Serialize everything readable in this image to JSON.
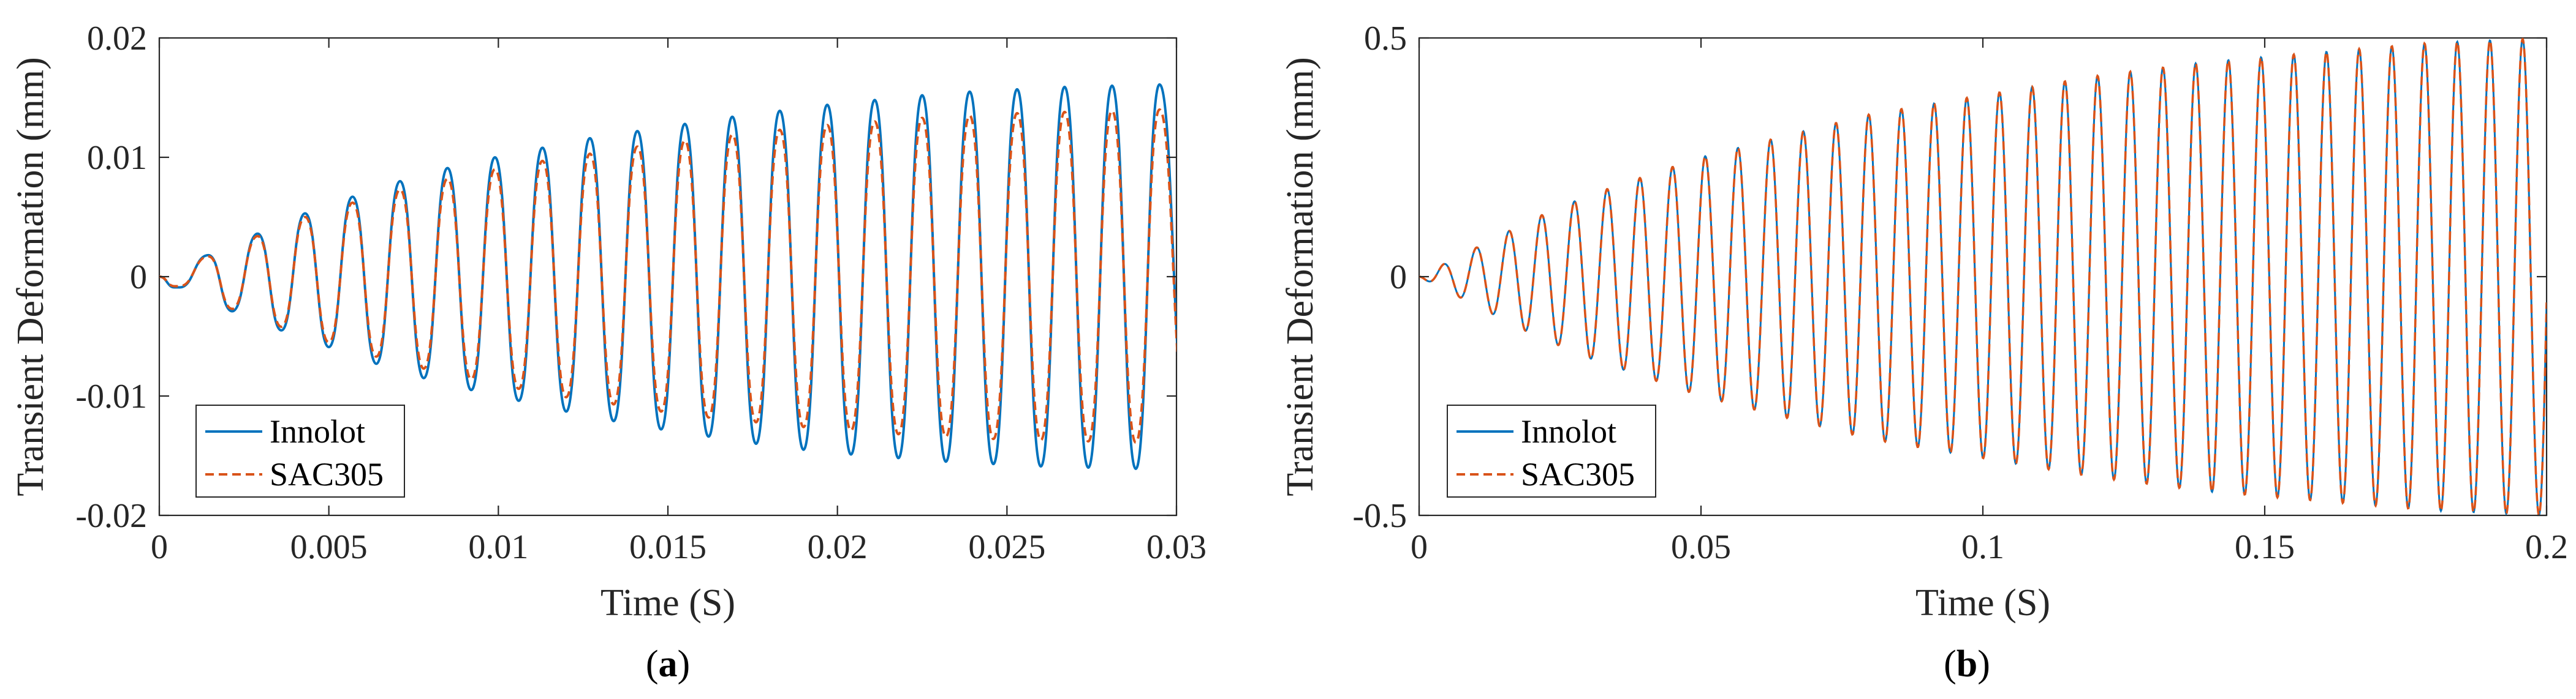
{
  "chart_data": [
    {
      "type": "line",
      "panel_label": "a",
      "xlabel": "Time (S)",
      "ylabel": "Transient Deformation (mm)",
      "xlim": [
        0,
        0.03
      ],
      "ylim": [
        -0.02,
        0.02
      ],
      "xticks": [
        0,
        0.005,
        0.01,
        0.015,
        0.02,
        0.025,
        0.03
      ],
      "xtick_labels": [
        "0",
        "0.005",
        "0.01",
        "0.015",
        "0.02",
        "0.025",
        "0.03"
      ],
      "yticks": [
        -0.02,
        -0.01,
        0,
        0.01,
        0.02
      ],
      "ytick_labels": [
        "-0.02",
        "-0.01",
        "0",
        "0.01",
        "0.02"
      ],
      "grid": false,
      "legend_position": "bottom-left",
      "series": [
        {
          "name": "Innolot",
          "color": "#0072BD",
          "style": "solid",
          "x": [
            0.00045,
            0.00145,
            0.0029,
            0.0043,
            0.0057,
            0.0071,
            0.0085,
            0.0099,
            0.0113,
            0.0127,
            0.0141,
            0.0155,
            0.0169,
            0.0183,
            0.0197,
            0.0211,
            0.0225,
            0.0239,
            0.0253,
            0.0267,
            0.0281,
            0.0295
          ],
          "y": [
            -0.0009,
            0.0018,
            0.0036,
            0.0053,
            0.0067,
            0.008,
            0.0091,
            0.01,
            0.0108,
            0.0116,
            0.0122,
            0.0128,
            0.0134,
            0.0139,
            0.0144,
            0.0148,
            0.0152,
            0.0155,
            0.0157,
            0.0159,
            0.016,
            0.0161
          ],
          "troughs_x": [
            0.0006,
            0.00215,
            0.0036,
            0.005,
            0.0064,
            0.0078,
            0.0092,
            0.0106,
            0.012,
            0.0134,
            0.0148,
            0.0162,
            0.0176,
            0.019,
            0.0204,
            0.0218,
            0.0232,
            0.0246,
            0.026,
            0.0274,
            0.0288
          ],
          "troughs_y": [
            -0.0009,
            -0.0029,
            -0.0045,
            -0.0059,
            -0.0073,
            -0.0085,
            -0.0095,
            -0.0104,
            -0.0113,
            -0.0121,
            -0.0128,
            -0.0134,
            -0.014,
            -0.0145,
            -0.0149,
            -0.0152,
            -0.0155,
            -0.0157,
            -0.0159,
            -0.016,
            -0.0161
          ]
        },
        {
          "name": "SAC305",
          "color": "#D95319",
          "style": "dashed",
          "x": [
            0.00045,
            0.00145,
            0.0029,
            0.0043,
            0.0057,
            0.0071,
            0.0085,
            0.0099,
            0.0113,
            0.0127,
            0.0141,
            0.0155,
            0.0169,
            0.0183,
            0.0197,
            0.0211,
            0.0225,
            0.0239,
            0.0253,
            0.0267,
            0.0281,
            0.0295
          ],
          "y": [
            -0.0008,
            0.0017,
            0.0034,
            0.005,
            0.0062,
            0.0073,
            0.0082,
            0.009,
            0.0097,
            0.0103,
            0.0109,
            0.0114,
            0.0119,
            0.0123,
            0.0127,
            0.013,
            0.0133,
            0.0135,
            0.0137,
            0.0138,
            0.0139,
            0.014
          ],
          "troughs_x": [
            0.0006,
            0.00215,
            0.0036,
            0.005,
            0.0064,
            0.0078,
            0.0092,
            0.0106,
            0.012,
            0.0134,
            0.0148,
            0.0162,
            0.0176,
            0.019,
            0.0204,
            0.0218,
            0.0232,
            0.0246,
            0.026,
            0.0274,
            0.0288
          ],
          "troughs_y": [
            -0.0008,
            -0.0027,
            -0.0042,
            -0.0055,
            -0.0067,
            -0.0077,
            -0.0086,
            -0.0094,
            -0.0101,
            -0.0107,
            -0.0113,
            -0.0118,
            -0.0122,
            -0.0126,
            -0.0129,
            -0.0132,
            -0.0134,
            -0.0136,
            -0.0137,
            -0.0138,
            -0.0139
          ]
        }
      ]
    },
    {
      "type": "line",
      "panel_label": "b",
      "xlabel": "Time (S)",
      "ylabel": "Transient Deformation (mm)",
      "xlim": [
        0,
        0.2
      ],
      "ylim": [
        -0.5,
        0.5
      ],
      "xticks": [
        0,
        0.05,
        0.1,
        0.15,
        0.2
      ],
      "xtick_labels": [
        "0",
        "0.05",
        "0.1",
        "0.15",
        "0.2"
      ],
      "yticks": [
        -0.5,
        0,
        0.5
      ],
      "ytick_labels": [
        "-0.5",
        "0",
        "0.5"
      ],
      "grid": false,
      "legend_position": "bottom-left",
      "series": [
        {
          "name": "Innolot",
          "color": "#0072BD",
          "style": "solid",
          "oscillation": {
            "start_time": 0.0,
            "period": 0.0058,
            "envelope_time": [
              0,
              0.01,
              0.02,
              0.03,
              0.04,
              0.05,
              0.06,
              0.08,
              0.1,
              0.12,
              0.14,
              0.16,
              0.18,
              0.2
            ],
            "envelope_amplitude": [
              0.0,
              0.06,
              0.12,
              0.17,
              0.21,
              0.25,
              0.28,
              0.34,
              0.38,
              0.42,
              0.45,
              0.47,
              0.49,
              0.5
            ]
          }
        },
        {
          "name": "SAC305",
          "color": "#D95319",
          "style": "dashed",
          "oscillation": {
            "start_time": 0.0,
            "period": 0.0058,
            "envelope_time": [
              0,
              0.01,
              0.02,
              0.03,
              0.04,
              0.05,
              0.06,
              0.08,
              0.1,
              0.12,
              0.14,
              0.16,
              0.18,
              0.2
            ],
            "envelope_amplitude": [
              0.0,
              0.06,
              0.12,
              0.17,
              0.21,
              0.25,
              0.28,
              0.34,
              0.38,
              0.42,
              0.45,
              0.47,
              0.49,
              0.5
            ]
          }
        }
      ]
    }
  ]
}
